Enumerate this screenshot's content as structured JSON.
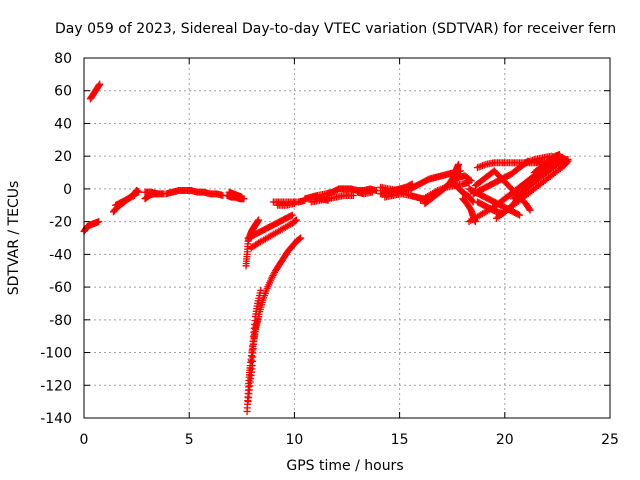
{
  "chart_data": {
    "type": "scatter",
    "title": "Day 059 of 2023, Sidereal Day-to-day VTEC variation (SDTVAR) for receiver fern",
    "xlabel": "GPS time / hours",
    "ylabel": "SDTVAR / TECUs",
    "xlim": [
      0,
      25
    ],
    "ylim": [
      -140,
      80
    ],
    "xticks": [
      0,
      5,
      10,
      15,
      20,
      25
    ],
    "yticks": [
      -140,
      -120,
      -100,
      -80,
      -60,
      -40,
      -20,
      0,
      20,
      40,
      60,
      80
    ],
    "grid": true,
    "marker": "+",
    "color": "#ff0000",
    "segments": [
      [
        [
          0.0,
          -26
        ],
        [
          0.15,
          -23
        ],
        [
          0.3,
          -22
        ],
        [
          0.5,
          -21
        ],
        [
          0.7,
          -20
        ]
      ],
      [
        [
          0.3,
          55
        ],
        [
          0.45,
          58
        ],
        [
          0.6,
          61
        ],
        [
          0.75,
          64
        ]
      ],
      [
        [
          1.4,
          -14
        ],
        [
          1.6,
          -11
        ],
        [
          1.8,
          -9
        ],
        [
          2.0,
          -7
        ],
        [
          2.2,
          -5
        ],
        [
          2.4,
          -3
        ],
        [
          2.5,
          -1
        ],
        [
          2.6,
          -2
        ]
      ],
      [
        [
          1.5,
          -10
        ],
        [
          1.8,
          -8
        ],
        [
          2.1,
          -6
        ],
        [
          2.4,
          -4
        ]
      ],
      [
        [
          2.9,
          -6
        ],
        [
          3.1,
          -4
        ],
        [
          3.3,
          -3
        ],
        [
          3.5,
          -3
        ],
        [
          3.8,
          -3
        ]
      ],
      [
        [
          2.9,
          -2
        ],
        [
          3.2,
          -2
        ],
        [
          3.5,
          -3
        ]
      ],
      [
        [
          3.9,
          -3
        ],
        [
          4.2,
          -2
        ],
        [
          4.5,
          -1
        ],
        [
          4.8,
          -1
        ],
        [
          5.1,
          -1
        ],
        [
          5.4,
          -2
        ],
        [
          5.7,
          -2
        ],
        [
          6.0,
          -3
        ],
        [
          6.3,
          -3
        ],
        [
          6.6,
          -4
        ]
      ],
      [
        [
          6.8,
          -4
        ],
        [
          7.0,
          -5
        ],
        [
          7.2,
          -5
        ],
        [
          7.4,
          -6
        ],
        [
          7.6,
          -6
        ]
      ],
      [
        [
          6.9,
          -2
        ],
        [
          7.1,
          -3
        ],
        [
          7.3,
          -4
        ],
        [
          7.5,
          -5
        ]
      ],
      [
        [
          7.7,
          -47
        ],
        [
          7.75,
          -40
        ],
        [
          7.8,
          -32
        ],
        [
          7.9,
          -28
        ],
        [
          8.0,
          -25
        ],
        [
          8.1,
          -23
        ],
        [
          8.2,
          -21
        ],
        [
          8.3,
          -19
        ]
      ],
      [
        [
          7.8,
          -30
        ],
        [
          8.1,
          -28
        ],
        [
          8.4,
          -26
        ],
        [
          8.7,
          -24
        ],
        [
          9.0,
          -22
        ],
        [
          9.3,
          -20
        ],
        [
          9.6,
          -18
        ],
        [
          9.9,
          -16
        ]
      ],
      [
        [
          7.95,
          -36
        ],
        [
          8.3,
          -33
        ],
        [
          8.7,
          -30
        ],
        [
          9.1,
          -27
        ],
        [
          9.5,
          -24
        ],
        [
          9.9,
          -21
        ],
        [
          10.1,
          -19
        ]
      ],
      [
        [
          7.75,
          -136
        ],
        [
          7.8,
          -125
        ],
        [
          7.85,
          -115
        ],
        [
          7.9,
          -108
        ],
        [
          8.0,
          -98
        ],
        [
          8.1,
          -90
        ],
        [
          8.2,
          -83
        ],
        [
          8.35,
          -75
        ],
        [
          8.5,
          -68
        ],
        [
          8.7,
          -61
        ],
        [
          8.9,
          -55
        ],
        [
          9.1,
          -50
        ],
        [
          9.3,
          -46
        ],
        [
          9.5,
          -42
        ],
        [
          9.7,
          -38
        ],
        [
          9.9,
          -35
        ],
        [
          10.1,
          -32
        ],
        [
          10.3,
          -30
        ]
      ],
      [
        [
          7.8,
          -130
        ],
        [
          7.9,
          -118
        ],
        [
          8.0,
          -108
        ],
        [
          8.05,
          -95
        ],
        [
          8.15,
          -85
        ],
        [
          8.3,
          -78
        ]
      ],
      [
        [
          7.95,
          -105
        ],
        [
          8.05,
          -90
        ],
        [
          8.15,
          -78
        ],
        [
          8.25,
          -70
        ],
        [
          8.4,
          -62
        ]
      ],
      [
        [
          9.0,
          -8
        ],
        [
          9.4,
          -8
        ],
        [
          9.8,
          -8
        ],
        [
          10.2,
          -8
        ],
        [
          10.5,
          -7
        ]
      ],
      [
        [
          9.2,
          -10
        ],
        [
          9.6,
          -10
        ],
        [
          10.0,
          -9
        ]
      ],
      [
        [
          10.5,
          -6
        ],
        [
          10.8,
          -5
        ],
        [
          11.1,
          -4
        ],
        [
          11.5,
          -3
        ],
        [
          11.8,
          -2
        ],
        [
          12.1,
          0
        ],
        [
          12.4,
          0
        ],
        [
          12.7,
          0
        ],
        [
          13.0,
          -1
        ],
        [
          13.3,
          -1
        ],
        [
          13.6,
          0
        ],
        [
          13.9,
          -1
        ]
      ],
      [
        [
          10.8,
          -8
        ],
        [
          11.2,
          -7
        ],
        [
          11.6,
          -6
        ],
        [
          12.0,
          -5
        ],
        [
          12.4,
          -4
        ],
        [
          12.8,
          -4
        ]
      ],
      [
        [
          11.0,
          -5
        ],
        [
          11.3,
          -6
        ],
        [
          11.6,
          -7
        ]
      ],
      [
        [
          13.0,
          -2
        ],
        [
          13.3,
          -3
        ],
        [
          13.7,
          -2
        ]
      ],
      [
        [
          14.1,
          -3
        ],
        [
          14.4,
          -2
        ],
        [
          14.7,
          -1
        ],
        [
          15.0,
          0
        ],
        [
          15.3,
          1
        ],
        [
          15.6,
          3
        ]
      ],
      [
        [
          14.3,
          -5
        ],
        [
          14.7,
          -4
        ],
        [
          15.1,
          -3
        ],
        [
          15.5,
          -4
        ],
        [
          15.8,
          -5
        ],
        [
          16.1,
          -6
        ]
      ],
      [
        [
          14.1,
          1
        ],
        [
          14.5,
          0
        ],
        [
          14.9,
          -1
        ]
      ],
      [
        [
          15.1,
          -2
        ],
        [
          15.5,
          0
        ],
        [
          15.8,
          2
        ],
        [
          16.1,
          4
        ],
        [
          16.4,
          6
        ],
        [
          16.7,
          7
        ],
        [
          17.0,
          8
        ],
        [
          17.3,
          9
        ],
        [
          17.6,
          10
        ],
        [
          17.9,
          11
        ]
      ],
      [
        [
          16.2,
          -9
        ],
        [
          16.5,
          -6
        ],
        [
          16.8,
          -3
        ],
        [
          17.1,
          0
        ],
        [
          17.4,
          4
        ],
        [
          17.6,
          8
        ],
        [
          17.7,
          12
        ],
        [
          17.8,
          15
        ]
      ],
      [
        [
          16.0,
          -7
        ],
        [
          16.4,
          -4
        ],
        [
          16.8,
          -1
        ],
        [
          17.2,
          1
        ],
        [
          17.6,
          2
        ],
        [
          18.0,
          3
        ],
        [
          18.3,
          4
        ]
      ],
      [
        [
          17.5,
          4
        ],
        [
          17.7,
          2
        ],
        [
          17.9,
          -1
        ],
        [
          18.1,
          -3
        ],
        [
          18.3,
          -5
        ],
        [
          18.5,
          -8
        ]
      ],
      [
        [
          17.6,
          6
        ],
        [
          17.8,
          7
        ],
        [
          18.1,
          8
        ],
        [
          18.4,
          5
        ]
      ],
      [
        [
          18.0,
          -6
        ],
        [
          18.2,
          -9
        ],
        [
          18.4,
          -13
        ],
        [
          18.5,
          -17
        ],
        [
          18.6,
          -20
        ]
      ],
      [
        [
          18.3,
          -20
        ],
        [
          18.7,
          -17
        ],
        [
          19.1,
          -14
        ],
        [
          19.5,
          -11
        ],
        [
          19.8,
          -8
        ],
        [
          20.1,
          -5
        ],
        [
          20.4,
          -2
        ],
        [
          20.7,
          1
        ],
        [
          21.0,
          4
        ],
        [
          21.3,
          7
        ],
        [
          21.6,
          10
        ],
        [
          21.9,
          13
        ],
        [
          22.2,
          15
        ],
        [
          22.5,
          17
        ],
        [
          22.8,
          18
        ]
      ],
      [
        [
          18.7,
          -8
        ],
        [
          19.0,
          -10
        ],
        [
          19.3,
          -12
        ],
        [
          19.6,
          -14
        ],
        [
          19.9,
          -15
        ],
        [
          20.2,
          -12
        ],
        [
          20.5,
          -8
        ],
        [
          20.7,
          -4
        ],
        [
          20.9,
          -1
        ],
        [
          21.2,
          3
        ],
        [
          21.5,
          7
        ],
        [
          21.8,
          11
        ],
        [
          22.1,
          14
        ],
        [
          22.4,
          16
        ]
      ],
      [
        [
          18.3,
          0
        ],
        [
          18.6,
          -2
        ],
        [
          18.9,
          -4
        ],
        [
          19.2,
          -6
        ],
        [
          19.5,
          -8
        ],
        [
          19.8,
          -10
        ],
        [
          20.1,
          -12
        ],
        [
          20.4,
          -14
        ],
        [
          20.7,
          -16
        ]
      ],
      [
        [
          18.6,
          2
        ],
        [
          18.9,
          5
        ],
        [
          19.2,
          8
        ],
        [
          19.5,
          11
        ],
        [
          19.8,
          7
        ],
        [
          20.1,
          3
        ],
        [
          20.4,
          -1
        ],
        [
          20.7,
          -5
        ],
        [
          21.0,
          -9
        ],
        [
          21.2,
          -13
        ]
      ],
      [
        [
          18.7,
          13
        ],
        [
          19.1,
          15
        ],
        [
          19.5,
          16
        ],
        [
          19.9,
          16
        ],
        [
          20.3,
          16
        ],
        [
          20.7,
          16
        ],
        [
          21.1,
          16
        ],
        [
          21.5,
          16
        ],
        [
          21.8,
          17
        ]
      ],
      [
        [
          18.5,
          -3
        ],
        [
          18.8,
          -1
        ],
        [
          19.1,
          1
        ],
        [
          19.4,
          3
        ],
        [
          19.7,
          5
        ],
        [
          20.0,
          7
        ],
        [
          20.3,
          9
        ],
        [
          20.6,
          12
        ],
        [
          20.9,
          15
        ],
        [
          21.1,
          17
        ]
      ],
      [
        [
          19.6,
          -18
        ],
        [
          20.0,
          -14
        ],
        [
          20.4,
          -10
        ],
        [
          20.8,
          -6
        ],
        [
          21.2,
          -2
        ],
        [
          21.6,
          2
        ],
        [
          22.0,
          6
        ],
        [
          22.4,
          10
        ],
        [
          22.8,
          14
        ],
        [
          23.0,
          17
        ]
      ],
      [
        [
          20.4,
          -6
        ],
        [
          20.8,
          -2
        ],
        [
          21.2,
          2
        ],
        [
          21.6,
          6
        ],
        [
          22.0,
          10
        ],
        [
          22.4,
          14
        ],
        [
          22.7,
          17
        ],
        [
          23.0,
          18
        ]
      ],
      [
        [
          20.8,
          -3
        ],
        [
          21.1,
          1
        ],
        [
          21.4,
          5
        ],
        [
          21.7,
          9
        ],
        [
          22.0,
          13
        ],
        [
          22.2,
          17
        ],
        [
          22.4,
          20
        ],
        [
          22.6,
          21
        ]
      ],
      [
        [
          21.4,
          10
        ],
        [
          21.7,
          13
        ],
        [
          22.0,
          16
        ],
        [
          22.3,
          19
        ],
        [
          22.6,
          20
        ],
        [
          22.9,
          18
        ]
      ],
      [
        [
          21.0,
          16
        ],
        [
          21.4,
          18
        ],
        [
          21.8,
          19
        ],
        [
          22.2,
          20
        ],
        [
          22.6,
          19
        ],
        [
          22.9,
          17
        ]
      ]
    ]
  }
}
